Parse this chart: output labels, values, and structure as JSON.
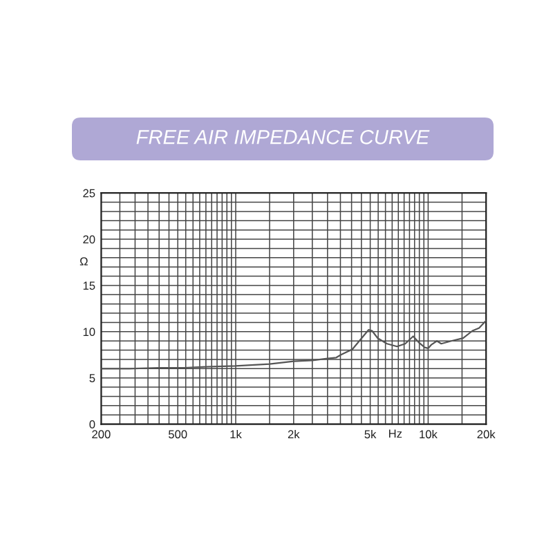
{
  "chart_data": {
    "type": "line",
    "title": "FREE AIR IMPEDANCE CURVE",
    "xlabel": "Hz",
    "ylabel": "Ω",
    "log": "x",
    "grid": true,
    "xlim": [
      200,
      20000
    ],
    "ylim": [
      0,
      25
    ],
    "xticks": [
      200,
      {
        "value": 250,
        "label": null
      },
      {
        "value": 300,
        "label": null
      },
      {
        "value": 350,
        "label": null
      },
      {
        "value": 400,
        "label": null
      },
      {
        "value": 450,
        "label": null
      },
      500,
      {
        "value": 550,
        "label": null
      },
      {
        "value": 600,
        "label": null
      },
      {
        "value": 650,
        "label": null
      },
      {
        "value": 700,
        "label": null
      },
      {
        "value": 750,
        "label": null
      },
      {
        "value": 800,
        "label": null
      },
      {
        "value": 850,
        "label": null
      },
      {
        "value": 900,
        "label": null
      },
      {
        "value": 950,
        "label": null
      },
      {
        "value": 1000,
        "label": "1k"
      },
      {
        "value": 1500,
        "label": null
      },
      {
        "value": 2000,
        "label": "2k"
      },
      {
        "value": 2500,
        "label": null
      },
      {
        "value": 3000,
        "label": null
      },
      {
        "value": 3500,
        "label": null
      },
      {
        "value": 4000,
        "label": null
      },
      {
        "value": 4500,
        "label": null
      },
      {
        "value": 5000,
        "label": "5k"
      },
      {
        "value": 5500,
        "label": null
      },
      {
        "value": 6000,
        "label": null
      },
      {
        "value": 6500,
        "label": null
      },
      {
        "value": 7000,
        "label": null
      },
      {
        "value": 7500,
        "label": null
      },
      {
        "value": 8000,
        "label": null
      },
      {
        "value": 8500,
        "label": null
      },
      {
        "value": 9000,
        "label": null
      },
      {
        "value": 9500,
        "label": null
      },
      {
        "value": 10000,
        "label": "10k"
      },
      {
        "value": 15000,
        "label": null
      },
      {
        "value": 20000,
        "label": "20k"
      }
    ],
    "yticks": [
      0,
      {
        "value": 1,
        "label": null
      },
      {
        "value": 2,
        "label": null
      },
      {
        "value": 3,
        "label": null
      },
      {
        "value": 4,
        "label": null
      },
      5,
      {
        "value": 6,
        "label": null
      },
      {
        "value": 7,
        "label": null
      },
      {
        "value": 8,
        "label": null
      },
      {
        "value": 9,
        "label": null
      },
      10,
      {
        "value": 11,
        "label": null
      },
      {
        "value": 12,
        "label": null
      },
      {
        "value": 13,
        "label": null
      },
      {
        "value": 14,
        "label": null
      },
      15,
      {
        "value": 16,
        "label": null
      },
      {
        "value": 17,
        "label": null
      },
      {
        "value": 18,
        "label": null
      },
      {
        "value": 19,
        "label": null
      },
      20,
      {
        "value": 21,
        "label": null
      },
      {
        "value": 22,
        "label": null
      },
      {
        "value": 23,
        "label": null
      },
      {
        "value": 24,
        "label": null
      },
      25
    ],
    "series": [
      {
        "color": "#555555",
        "x": [
          200,
          280,
          400,
          540,
          700,
          1000,
          1500,
          2000,
          2500,
          3000,
          3330,
          3520,
          4040,
          4510,
          4900,
          5110,
          5470,
          6110,
          6890,
          7600,
          8360,
          8980,
          9600,
          10000,
          10400,
          11100,
          11700,
          13200,
          15200,
          17000,
          18400,
          20000
        ],
        "values": [
          6.0,
          6.0,
          6.1,
          6.1,
          6.2,
          6.3,
          6.5,
          6.8,
          6.9,
          7.1,
          7.2,
          7.5,
          8.1,
          9.3,
          10.2,
          10.1,
          9.3,
          8.7,
          8.4,
          8.7,
          9.5,
          8.8,
          8.3,
          8.2,
          8.6,
          9.0,
          8.7,
          9.0,
          9.3,
          10.1,
          10.4,
          11.2
        ]
      }
    ]
  }
}
